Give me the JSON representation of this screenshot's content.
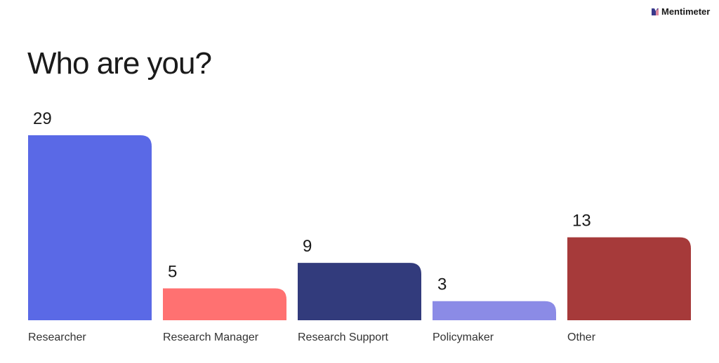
{
  "brand": "Mentimeter",
  "chart_data": {
    "type": "bar",
    "title": "Who are you?",
    "categories": [
      "Researcher",
      "Research Manager",
      "Research Support",
      "Policymaker",
      "Other"
    ],
    "values": [
      29,
      5,
      9,
      3,
      13
    ],
    "colors": [
      "#5a69e6",
      "#ff7171",
      "#323b7c",
      "#8b8be6",
      "#a63a3a"
    ]
  }
}
